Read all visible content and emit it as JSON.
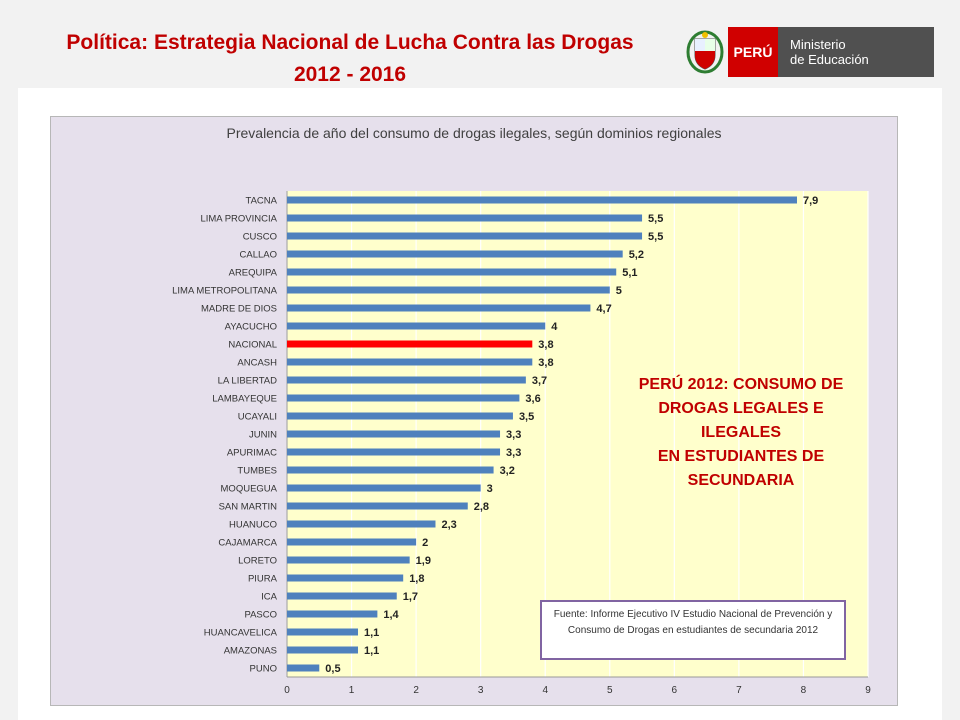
{
  "header": {
    "title_line1": "Política: Estrategia Nacional  de Lucha Contra las Drogas",
    "title_line2": "2012 - 2016"
  },
  "logo": {
    "country": "PERÚ",
    "ministry_line1": "Ministerio",
    "ministry_line2": "de Educación"
  },
  "annotation": {
    "line1": "PERÚ 2012: CONSUMO DE",
    "line2": "DROGAS LEGALES E",
    "line3": "ILEGALES",
    "line4": "EN ESTUDIANTES DE",
    "line5": "SECUNDARIA"
  },
  "source_box": {
    "text": "Fuente: Informe Ejecutivo IV Estudio Nacional de Prevención y Consumo de Drogas en estudiantes de secundaria 2012"
  },
  "colors": {
    "title": "#c00000",
    "bar": "#4f81bd",
    "highlight_bar": "#ff0000",
    "plot_bg": "#ffffcc",
    "chart_bg": "#e6e0ec"
  },
  "chart_data": {
    "type": "bar",
    "orientation": "horizontal",
    "title": "Prevalencia de año del consumo de drogas ilegales, según dominios regionales",
    "categories": [
      "TACNA",
      "LIMA PROVINCIA",
      "CUSCO",
      "CALLAO",
      "AREQUIPA",
      "LIMA METROPOLITANA",
      "MADRE DE DIOS",
      "AYACUCHO",
      "NACIONAL",
      "ANCASH",
      "LA LIBERTAD",
      "LAMBAYEQUE",
      "UCAYALI",
      "JUNIN",
      "APURIMAC",
      "TUMBES",
      "MOQUEGUA",
      "SAN MARTIN",
      "HUANUCO",
      "CAJAMARCA",
      "LORETO",
      "PIURA",
      "ICA",
      "PASCO",
      "HUANCAVELICA",
      "AMAZONAS",
      "PUNO"
    ],
    "values": [
      7.9,
      5.5,
      5.5,
      5.2,
      5.1,
      5,
      4.7,
      4,
      3.8,
      3.8,
      3.7,
      3.6,
      3.5,
      3.3,
      3.3,
      3.2,
      3,
      2.8,
      2.3,
      2,
      1.9,
      1.8,
      1.7,
      1.4,
      1.1,
      1.1,
      0.5
    ],
    "value_labels": [
      "7,9",
      "5,5",
      "5,5",
      "5,2",
      "5,1",
      "5",
      "4,7",
      "4",
      "3,8",
      "3,8",
      "3,7",
      "3,6",
      "3,5",
      "3,3",
      "3,3",
      "3,2",
      "3",
      "2,8",
      "2,3",
      "2",
      "1,9",
      "1,8",
      "1,7",
      "1,4",
      "1,1",
      "1,1",
      "0,5"
    ],
    "highlight": "NACIONAL",
    "xlim": [
      0,
      9
    ],
    "xticks": [
      "0",
      "1",
      "2",
      "3",
      "4",
      "5",
      "6",
      "7",
      "8",
      "9"
    ],
    "grid": true
  }
}
